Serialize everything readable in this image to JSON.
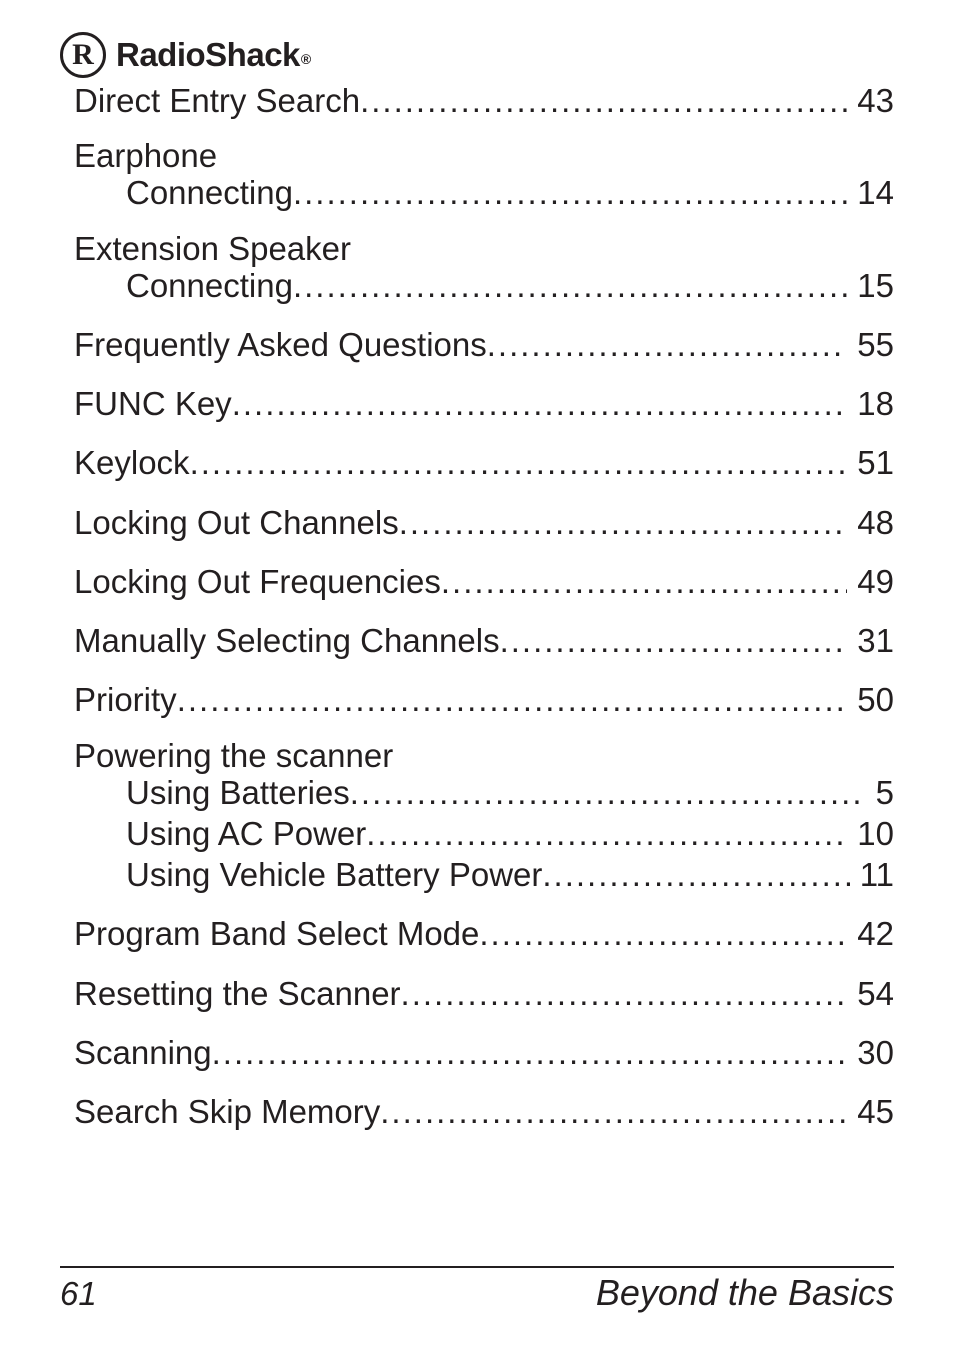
{
  "brand": {
    "mark": "R",
    "name": "RadioShack"
  },
  "entries": [
    {
      "label": "Direct Entry Search",
      "page": "43",
      "sub": false,
      "head": null
    },
    {
      "head": "Earphone"
    },
    {
      "label": "Connecting",
      "page": "14",
      "sub": true
    },
    {
      "head": "Extension Speaker"
    },
    {
      "label": "Connecting",
      "page": "15",
      "sub": true
    },
    {
      "label": "Frequently Asked Questions",
      "page": "55",
      "sub": false
    },
    {
      "label": "FUNC Key",
      "page": "18",
      "sub": false
    },
    {
      "label": "Keylock",
      "page": "51",
      "sub": false
    },
    {
      "label": "Locking Out Channels",
      "page": "48",
      "sub": false
    },
    {
      "label": "Locking Out Frequencies",
      "page": "49",
      "sub": false
    },
    {
      "label": "Manually Selecting Channels",
      "page": "31",
      "sub": false
    },
    {
      "label": "Priority",
      "page": "50",
      "sub": false
    },
    {
      "head": "Powering the scanner"
    },
    {
      "label": "Using Batteries",
      "page": "5",
      "sub": true
    },
    {
      "label": "Using AC Power",
      "page": "10",
      "sub": true
    },
    {
      "label": "Using Vehicle Battery Power",
      "page": "11",
      "sub": true
    },
    {
      "label": "Program Band Select Mode",
      "page": "42",
      "sub": false
    },
    {
      "label": "Resetting the Scanner",
      "page": "54",
      "sub": false
    },
    {
      "label": "Scanning",
      "page": "30",
      "sub": false
    },
    {
      "label": "Search Skip Memory",
      "page": "45",
      "sub": false
    }
  ],
  "footer": {
    "page": "61",
    "section": "Beyond the Basics"
  }
}
